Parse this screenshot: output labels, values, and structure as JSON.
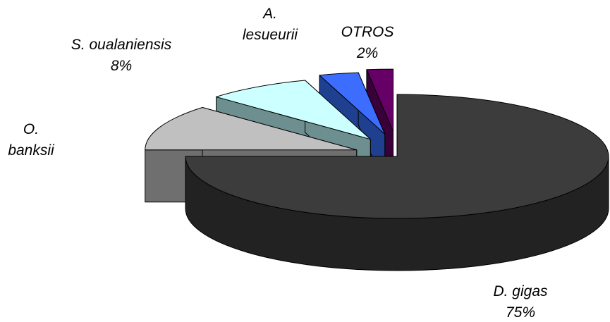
{
  "chart_data": {
    "type": "pie",
    "style": "3d-exploded",
    "slices": [
      {
        "name": "D. gigas",
        "name_lines": [
          "D. gigas"
        ],
        "value": 75,
        "label": "75%",
        "color_top": "#3c3c3c",
        "color_side": "#222222"
      },
      {
        "name": "O. banksii",
        "name_lines": [
          "O.",
          "banksii"
        ],
        "value": 12,
        "label": "",
        "color_top": "#c0c0c0",
        "color_side": "#6f6f6f"
      },
      {
        "name": "S. oualaniensis",
        "name_lines": [
          "S. oualaniensis"
        ],
        "value": 8,
        "label": "8%",
        "color_top": "#ccffff",
        "color_side": "#6d8f8f"
      },
      {
        "name": "A. lesueurii",
        "name_lines": [
          "A.",
          "lesueurii"
        ],
        "value": 3,
        "label": "",
        "color_top": "#3d6dff",
        "color_side": "#1f3f8f"
      },
      {
        "name": "OTROS",
        "name_lines": [
          "OTROS"
        ],
        "value": 2,
        "label": "2%",
        "color_top": "#660066",
        "color_side": "#3a003a"
      }
    ],
    "legend": "none"
  }
}
